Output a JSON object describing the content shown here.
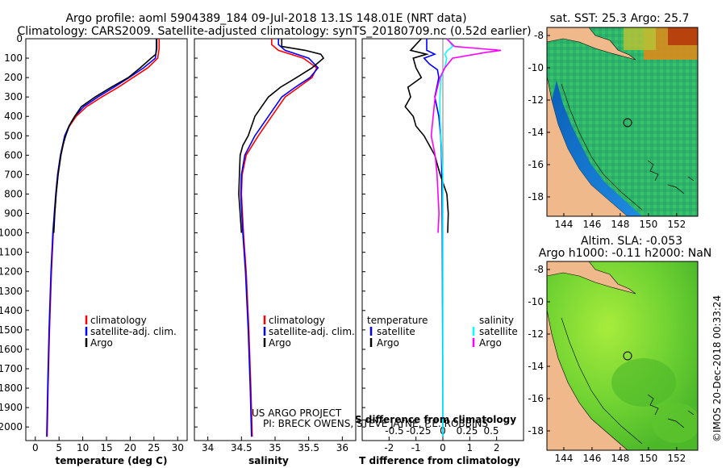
{
  "header": {
    "title_line1": "Argo profile: aoml 5904389_184 09-Jul-2018 13.1S 148.01E (NRT data)",
    "title_line2": "Climatology: CARS2009. Satellite-adjusted climatology: synTS_20180709.nc (0.52d earlier)"
  },
  "colors": {
    "climatology": "#ff0000",
    "satellite": "#0000ff",
    "argo": "#000000",
    "salinity_satellite": "#00ffff",
    "salinity_argo": "#ff00ff",
    "land": "#f0b98c"
  },
  "chart_data": [
    {
      "type": "line",
      "name": "temperature",
      "xlabel": "temperature (deg C)",
      "ylabel": "",
      "xlim": [
        -2,
        32
      ],
      "ylim": [
        2070,
        0
      ],
      "xticks": [
        0,
        5,
        10,
        15,
        20,
        25,
        30
      ],
      "yticks": [
        0,
        100,
        200,
        300,
        400,
        500,
        600,
        700,
        800,
        900,
        1000,
        1100,
        1200,
        1300,
        1400,
        1500,
        1600,
        1700,
        1800,
        1900,
        2000
      ],
      "legend": [
        "climatology",
        "satellite-adj. clim.",
        "Argo"
      ],
      "series": [
        {
          "name": "climatology",
          "color": "#ff0000",
          "depth": [
            0,
            50,
            100,
            150,
            200,
            250,
            300,
            350,
            400,
            450,
            500,
            600,
            700,
            800,
            1000,
            1200,
            1500,
            1800,
            2050
          ],
          "values": [
            26.1,
            26.1,
            25.8,
            23.7,
            20.6,
            17.5,
            14.0,
            10.8,
            8.6,
            7.2,
            6.3,
            5.4,
            4.8,
            4.4,
            3.8,
            3.4,
            3.0,
            2.7,
            2.5
          ]
        },
        {
          "name": "satellite-adj. clim.",
          "color": "#0000ff",
          "depth": [
            0,
            50,
            100,
            150,
            200,
            250,
            300,
            350,
            400,
            450,
            500,
            600,
            700,
            800,
            1000,
            1200,
            1500,
            1800,
            2050
          ],
          "values": [
            25.5,
            25.5,
            25.3,
            22.8,
            19.8,
            16.6,
            13.2,
            10.2,
            8.3,
            7.1,
            6.2,
            5.3,
            4.7,
            4.3,
            3.7,
            3.3,
            2.9,
            2.6,
            2.4
          ]
        },
        {
          "name": "Argo",
          "color": "#000000",
          "depth": [
            0,
            50,
            80,
            100,
            150,
            200,
            250,
            300,
            350,
            400,
            450,
            480,
            500,
            550,
            600,
            700,
            800,
            900,
            1000
          ],
          "values": [
            25.6,
            25.6,
            25.4,
            24.4,
            22.1,
            19.6,
            16.0,
            12.6,
            9.7,
            8.3,
            7.1,
            6.7,
            6.4,
            5.8,
            5.4,
            4.8,
            4.4,
            4.1,
            3.9
          ]
        }
      ]
    },
    {
      "type": "line",
      "name": "salinity",
      "xlabel": "salinity",
      "xlim": [
        33.8,
        36.2
      ],
      "ylim": [
        2070,
        0
      ],
      "xticks": [
        34,
        34.5,
        35,
        35.5,
        36
      ],
      "legend": [
        "climatology",
        "satellite-adj. clim.",
        "Argo"
      ],
      "annotation": [
        "US ARGO PROJECT",
        "PI: BRECK OWENS, STEVE JAYNE, P.E. ROBBINS"
      ],
      "series": [
        {
          "name": "climatology",
          "color": "#ff0000",
          "depth": [
            0,
            30,
            60,
            100,
            150,
            200,
            250,
            300,
            400,
            500,
            600,
            700,
            800,
            1000,
            1200,
            1500,
            1800,
            2050
          ],
          "values": [
            34.95,
            34.95,
            35.05,
            35.42,
            35.62,
            35.55,
            35.35,
            35.15,
            34.95,
            34.75,
            34.57,
            34.51,
            34.5,
            34.53,
            34.57,
            34.61,
            34.64,
            34.66
          ]
        },
        {
          "name": "satellite-adj. clim.",
          "color": "#0000ff",
          "depth": [
            0,
            30,
            60,
            100,
            150,
            200,
            250,
            300,
            400,
            500,
            600,
            700,
            800,
            1000,
            1200,
            1500,
            1800,
            2050
          ],
          "values": [
            35.05,
            35.05,
            35.15,
            35.5,
            35.64,
            35.52,
            35.3,
            35.1,
            34.9,
            34.7,
            34.55,
            34.5,
            34.49,
            34.52,
            34.56,
            34.6,
            34.63,
            34.65
          ]
        },
        {
          "name": "Argo",
          "color": "#000000",
          "depth": [
            0,
            40,
            60,
            80,
            100,
            150,
            200,
            250,
            300,
            350,
            400,
            500,
            550,
            600,
            700,
            800,
            900,
            1000
          ],
          "values": [
            35.1,
            35.1,
            35.45,
            35.68,
            35.72,
            35.55,
            35.32,
            35.08,
            34.9,
            34.8,
            34.7,
            34.6,
            34.52,
            34.48,
            34.47,
            34.46,
            34.48,
            34.5
          ]
        }
      ]
    },
    {
      "type": "line",
      "name": "difference",
      "xlabel": "T difference from climatology",
      "xlabel_top": "S difference from climatology",
      "xlim": [
        -3,
        3
      ],
      "ylim": [
        2070,
        0
      ],
      "xticks": [
        -2,
        -1,
        0,
        1,
        2
      ],
      "sticks": [
        -0.5,
        -0.25,
        0,
        0.25,
        0.5
      ],
      "legend_left_title": "temperature",
      "legend_right_title": "salinity",
      "legend": [
        "satellite",
        "Argo"
      ],
      "series": [
        {
          "name": "T satellite",
          "color": "#0000ff",
          "depth": [
            0,
            60,
            80,
            100,
            130,
            160,
            200,
            300,
            400,
            500,
            600,
            700,
            800,
            1000,
            1500,
            2050
          ],
          "values": [
            -0.6,
            -0.6,
            -0.3,
            -0.7,
            -0.5,
            -0.2,
            -0.15,
            -0.3,
            -0.15,
            -0.08,
            -0.05,
            -0.04,
            -0.03,
            -0.02,
            -0.01,
            0
          ]
        },
        {
          "name": "T Argo",
          "color": "#000000",
          "depth": [
            0,
            60,
            80,
            100,
            150,
            200,
            250,
            300,
            350,
            400,
            450,
            500,
            550,
            600,
            650,
            700,
            800,
            900,
            1000
          ],
          "values": [
            -0.8,
            -1.2,
            -0.6,
            -1.1,
            -1.0,
            -0.8,
            -1.3,
            -1.2,
            -1.4,
            -1.1,
            -1.0,
            -0.7,
            -0.5,
            -0.3,
            -0.2,
            -0.1,
            0.15,
            0.2,
            0.18
          ]
        },
        {
          "name": "S satellite",
          "color": "#00ffff",
          "depth": [
            0,
            40,
            60,
            80,
            100,
            150,
            200,
            300,
            400,
            500,
            600,
            700,
            800,
            1000,
            1500,
            2050
          ],
          "values": [
            0.05,
            0.1,
            0.05,
            0.02,
            0.04,
            0.02,
            -0.02,
            -0.03,
            -0.03,
            -0.02,
            -0.01,
            0,
            0,
            0,
            0,
            0
          ]
        },
        {
          "name": "S Argo",
          "color": "#ff00ff",
          "depth": [
            0,
            40,
            50,
            60,
            70,
            100,
            150,
            200,
            300,
            400,
            500,
            600,
            700,
            800,
            900,
            1000
          ],
          "values": [
            0.04,
            0.12,
            0.36,
            0.6,
            0.45,
            0.1,
            0.02,
            -0.03,
            -0.08,
            -0.1,
            -0.12,
            -0.08,
            -0.06,
            -0.05,
            -0.04,
            -0.05
          ]
        }
      ]
    },
    {
      "type": "heatmap",
      "name": "sst-map",
      "title": "sat. SST: 25.3 Argo: 25.7",
      "xticks": [
        144,
        146,
        148,
        150,
        152
      ],
      "yticks": [
        -8,
        -10,
        -12,
        -14,
        -16,
        -18
      ],
      "xlim": [
        142.8,
        153.5
      ],
      "ylim": [
        -19.2,
        -7.5
      ],
      "marker": {
        "lon": 148.01,
        "lat": -13.1
      }
    },
    {
      "type": "heatmap",
      "name": "sla-map",
      "title_line1": "Altim. SLA: -0.053",
      "title_line2": "Argo h1000: -0.11 h2000: NaN",
      "xticks": [
        144,
        146,
        148,
        150,
        152
      ],
      "yticks": [
        -8,
        -10,
        -12,
        -14,
        -16,
        -18
      ],
      "xlim": [
        142.8,
        153.5
      ],
      "ylim": [
        -19.2,
        -7.5
      ],
      "marker": {
        "lon": 148.01,
        "lat": -13.1
      }
    }
  ],
  "footer": {
    "credit": "©IMOS 20-Dec-2018 00:33:24"
  }
}
